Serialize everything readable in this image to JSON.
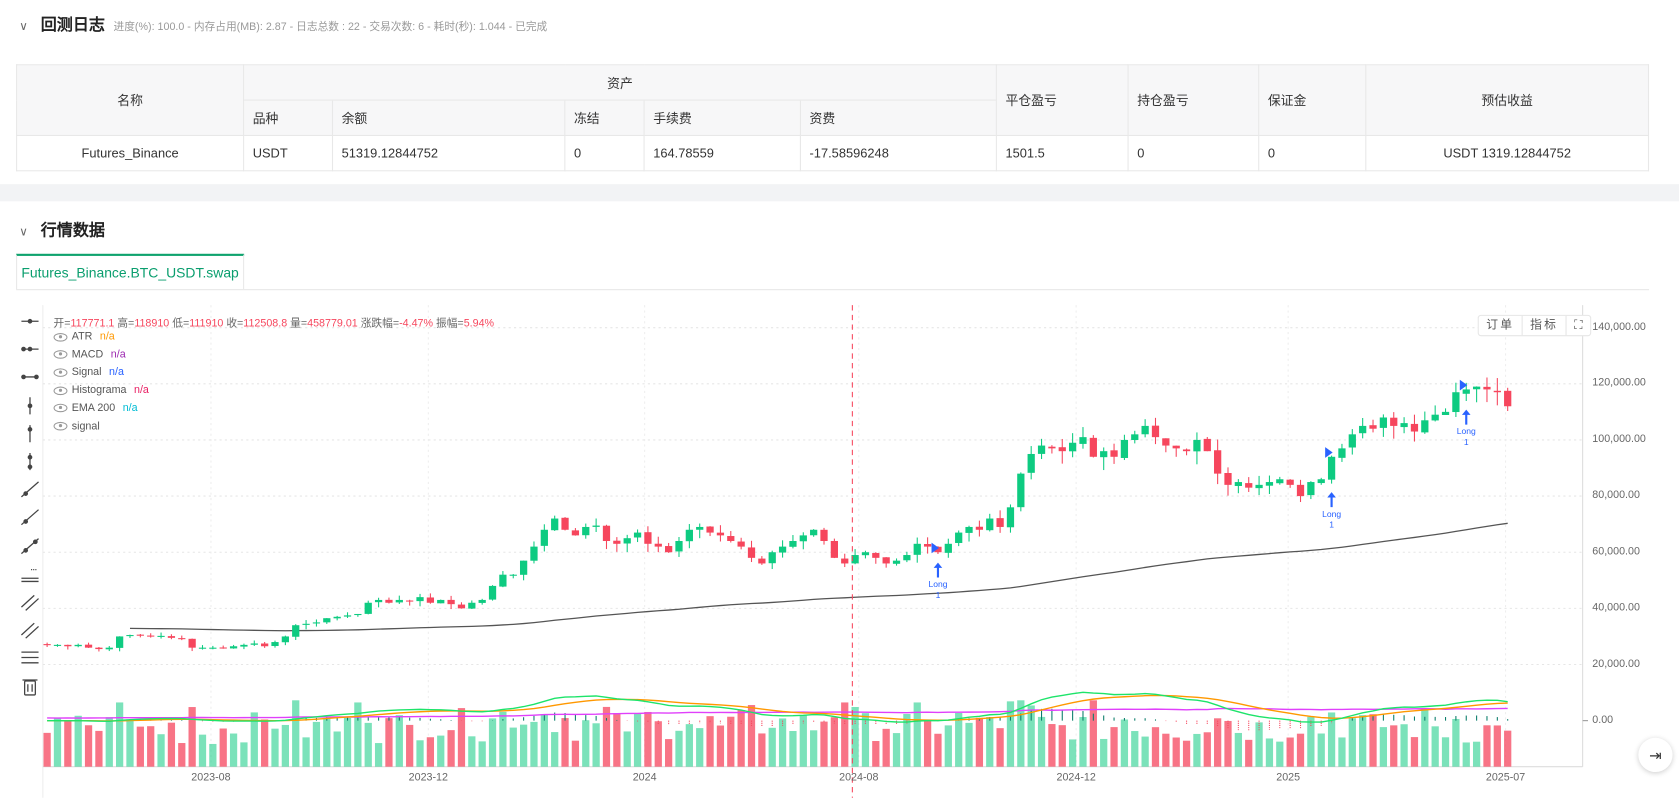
{
  "log": {
    "title": "回测日志",
    "summary": "进度(%): 100.0 - 内存占用(MB): 2.87 - 日志总数 : 22 - 交易次数:  6 - 耗时(秒): 1.044 - 已完成"
  },
  "table": {
    "h_name": "名称",
    "h_assets": "资产",
    "h_symbol": "品种",
    "h_balance": "余额",
    "h_frozen": "冻结",
    "h_fee": "手续费",
    "h_funding": "资费",
    "h_closed_pnl": "平仓盈亏",
    "h_pos_pnl": "持仓盈亏",
    "h_margin": "保证金",
    "h_est": "预估收益",
    "row": {
      "name": "Futures_Binance",
      "symbol": "USDT",
      "balance": "51319.12844752",
      "frozen": "0",
      "fee": "164.78559",
      "funding": "-17.58596248",
      "closed_pnl": "1501.5",
      "pos_pnl": "0",
      "margin": "0",
      "est": "USDT 1319.12844752"
    }
  },
  "market": {
    "title": "行情数据",
    "tab": "Futures_Binance.BTC_USDT.swap",
    "btn_orders": "订单",
    "btn_indicators": "指标",
    "fullscreen_icon": "expand-icon"
  },
  "ohlc": {
    "o_l": "开=",
    "o": "117771.1",
    "h_l": "高=",
    "h": "118910",
    "l_l": "低=",
    "l": "111910",
    "c_l": "收=",
    "c": "112508.8",
    "v_l": "量=",
    "v": "458779.01",
    "chg_l": "涨跌幅=",
    "chg": "-4.47%",
    "amp_l": "振幅=",
    "amp": "5.94%"
  },
  "legend": [
    {
      "name": "ATR",
      "val": "n/a",
      "color": "#ff9800"
    },
    {
      "name": "MACD",
      "val": "n/a",
      "color": "#9c27b0"
    },
    {
      "name": "Signal",
      "val": "n/a",
      "color": "#2962ff"
    },
    {
      "name": "Histograma",
      "val": "n/a",
      "color": "#e91e63"
    },
    {
      "name": "EMA 200",
      "val": "n/a",
      "color": "#00bcd4"
    },
    {
      "name": "signal",
      "val": "",
      "color": "#888"
    }
  ],
  "colors": {
    "up": "#0ecb81",
    "down": "#f6465d",
    "ema": "#555",
    "macd": "#1de46a",
    "signal_line": "#ff9800",
    "atr": "#e040fb",
    "marker": "#2962ff"
  },
  "chart_data": {
    "type": "candlestick",
    "symbol": "BTC_USDT",
    "price_ticks": [
      "0.00",
      "20,000.00",
      "40,000.00",
      "60,000.00",
      "80,000.00",
      "100,000.00",
      "120,000.00",
      "140,000.00"
    ],
    "ylim": [
      0,
      140000
    ],
    "x_ticks": [
      "2023-08",
      "2023-12",
      "2024",
      "2024-08",
      "2024-12",
      "2025",
      "2025-07"
    ],
    "closes_k": [
      27,
      27,
      26.5,
      27,
      26,
      25.5,
      26,
      30,
      30.5,
      30.3,
      30,
      30.2,
      29.5,
      29.2,
      26,
      26,
      26,
      25.8,
      26.5,
      27,
      27.5,
      26.5,
      28,
      30,
      34,
      34.5,
      35,
      36.5,
      37,
      37.5,
      38,
      42,
      43,
      42,
      43,
      42.5,
      44,
      42,
      43,
      41.5,
      40,
      42,
      43,
      48,
      52,
      52,
      57,
      62,
      68,
      72,
      68,
      66,
      69,
      69.5,
      64,
      63,
      65,
      67,
      63,
      62,
      60,
      64,
      68,
      69,
      67,
      66,
      64,
      62,
      58,
      56,
      60,
      62,
      64,
      66,
      68,
      64,
      58,
      56,
      59,
      60,
      58,
      56,
      57,
      59,
      63,
      62,
      60,
      63,
      67,
      69,
      68,
      72,
      69,
      76,
      88,
      95,
      98,
      97,
      96,
      99,
      101,
      94,
      96,
      94,
      100,
      102,
      105,
      101,
      98,
      97,
      96,
      100,
      96,
      88,
      84,
      85,
      83,
      84,
      85,
      86,
      84,
      80,
      85,
      86,
      94,
      97,
      102,
      105,
      104,
      108,
      105,
      106,
      103,
      107,
      109,
      110,
      117,
      118,
      119,
      118,
      117,
      112
    ],
    "signals": [
      {
        "label": "Long",
        "qty": "1",
        "index": 86
      },
      {
        "label": "Long",
        "qty": "1",
        "index": 124
      },
      {
        "label": "Long",
        "qty": "1",
        "index": 137
      }
    ]
  }
}
